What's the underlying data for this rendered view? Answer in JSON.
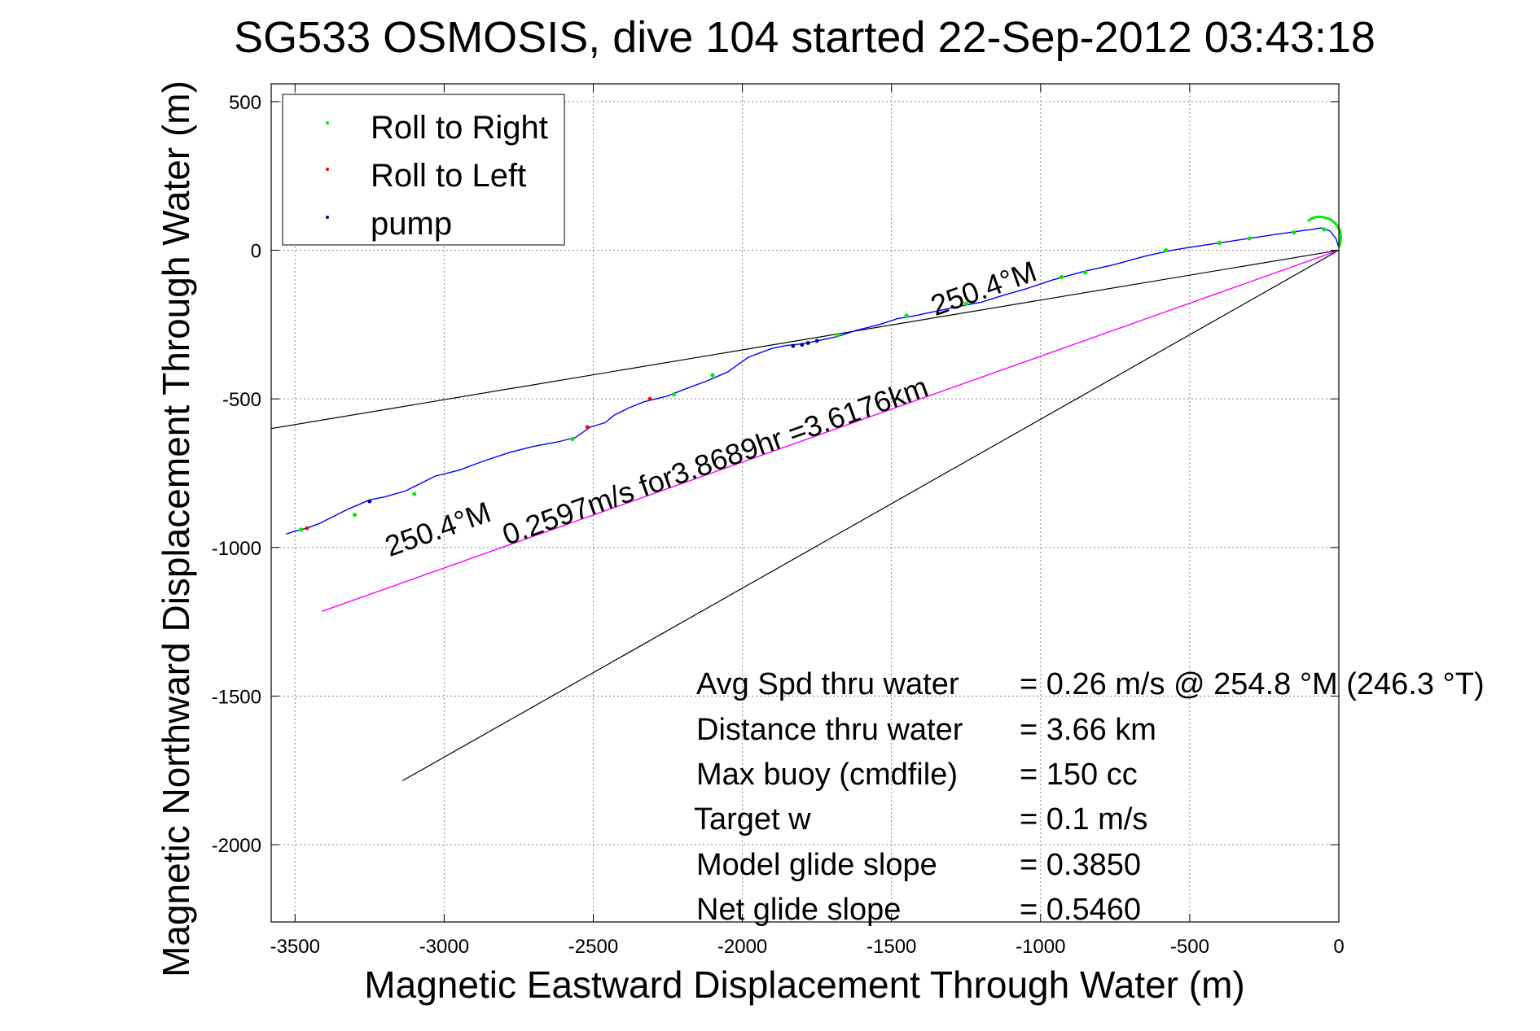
{
  "chart_data": {
    "type": "line",
    "title": "SG533 OSMOSIS, dive 104 started 22-Sep-2012 03:43:18",
    "xlabel": "Magnetic Eastward Displacement Through Water (m)",
    "ylabel": "Magnetic Northward Displacement Through Water (m)",
    "xlim": [
      -3580,
      0
    ],
    "ylim": [
      -2260,
      560
    ],
    "xticks": [
      -3500,
      -3000,
      -2500,
      -2000,
      -1500,
      -1000,
      -500,
      0
    ],
    "yticks": [
      500,
      0,
      -500,
      -1000,
      -1500,
      -2000
    ],
    "grid": true,
    "legend_position": "top-left",
    "colors": {
      "track": "#0000ff",
      "roll_right": "#00ee00",
      "roll_left": "#ff0000",
      "pump": "#000080",
      "ref_line": "#000000",
      "avg_line": "#ff00ff"
    },
    "legend": [
      {
        "label": "Roll to Right",
        "color": "#00ee00"
      },
      {
        "label": "Roll to Left",
        "color": "#ff0000"
      },
      {
        "label": "pump",
        "color": "#000080"
      }
    ],
    "track": {
      "name": "",
      "x": [
        0,
        -10,
        -30,
        -60,
        -90,
        -130,
        -200,
        -300,
        -400,
        -500,
        -560,
        -650,
        -760,
        -850,
        -960,
        -1050,
        -1120,
        -1200,
        -1280,
        -1350,
        -1420,
        -1480,
        -1540,
        -1620,
        -1680,
        -1750,
        -1800,
        -1850,
        -1900,
        -1980,
        -2050,
        -2120,
        -2200,
        -2250,
        -2290,
        -2330,
        -2380,
        -2430,
        -2460,
        -2510,
        -2560,
        -2620,
        -2700,
        -2780,
        -2870,
        -2950,
        -3030,
        -3130,
        -3200,
        -3250,
        -3320,
        -3380,
        -3420,
        -3460,
        -3500,
        -3530
      ],
      "y": [
        10,
        40,
        65,
        75,
        70,
        65,
        55,
        40,
        25,
        10,
        0,
        -20,
        -50,
        -70,
        -100,
        -130,
        -150,
        -175,
        -190,
        -205,
        -220,
        -230,
        -250,
        -270,
        -290,
        -305,
        -315,
        -320,
        -330,
        -360,
        -410,
        -440,
        -470,
        -490,
        -500,
        -510,
        -530,
        -555,
        -580,
        -595,
        -630,
        -645,
        -660,
        -680,
        -710,
        -740,
        -760,
        -810,
        -830,
        -840,
        -870,
        -900,
        -920,
        -935,
        -945,
        -955
      ]
    },
    "roll_right_points": {
      "x": [
        -50,
        -150,
        -300,
        -400,
        -580,
        -850,
        -930,
        -1250,
        -1450,
        -1680,
        -2100,
        -2230,
        -2570,
        -3100,
        -3300,
        -3480
      ],
      "y": [
        70,
        60,
        40,
        25,
        0,
        -75,
        -90,
        -180,
        -220,
        -285,
        -420,
        -485,
        -635,
        -820,
        -890,
        -940
      ]
    },
    "roll_left_points": {
      "x": [
        -2310,
        -2520,
        -3460
      ],
      "y": [
        -500,
        -595,
        -935
      ]
    },
    "pump_points": {
      "x": [
        -1750,
        -1780,
        -1800,
        -1830,
        -3250
      ],
      "y": [
        -305,
        -312,
        -318,
        -322,
        -845
      ]
    },
    "reference_lines": [
      {
        "x": [
          0,
          -3580
        ],
        "y": [
          0,
          -600
        ],
        "color": "#000000"
      },
      {
        "x": [
          0,
          -3140
        ],
        "y": [
          0,
          -1785
        ],
        "color": "#000000"
      }
    ],
    "avg_line": {
      "x": [
        0,
        -3410
      ],
      "y": [
        0,
        -1215
      ],
      "color": "#ff00ff"
    },
    "annotations": [
      {
        "text": "250.4°M",
        "x": -1180,
        "y": -160,
        "angle": 180
      },
      {
        "text": "0.2597m/s for3.8689hr =3.6176km",
        "x": -2080,
        "y": -740,
        "angle": 180
      },
      {
        "text": "250.4°M",
        "x": -3010,
        "y": -970,
        "angle": 180
      }
    ],
    "stats": [
      {
        "label": "Avg Spd thru water",
        "value": "=  0.26 m/s @ 254.8 °M (246.3 °T)"
      },
      {
        "label": "Distance thru water",
        "value": "=  3.66 km"
      },
      {
        "label": "Max buoy (cmdfile)",
        "value": "= 150 cc"
      },
      {
        "label": "Target w",
        "value": "= 0.1 m/s"
      },
      {
        "label": "Model glide slope",
        "value": "= 0.3850"
      },
      {
        "label": "Net glide slope",
        "value": "= 0.5460"
      }
    ]
  }
}
